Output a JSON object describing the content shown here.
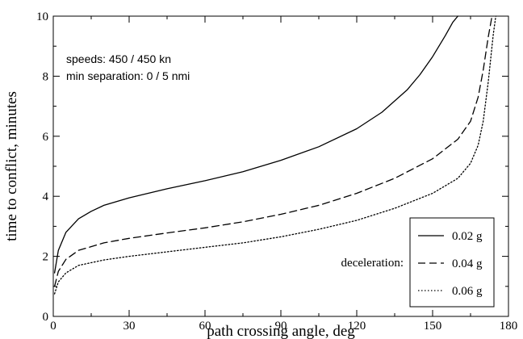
{
  "chart_data": {
    "type": "line",
    "xlabel": "path crossing angle, deg",
    "ylabel": "time to conflict, minutes",
    "xlim": [
      0,
      180
    ],
    "ylim": [
      0,
      10
    ],
    "xticks": [
      0,
      30,
      60,
      90,
      120,
      150,
      180
    ],
    "yticks": [
      0,
      2,
      4,
      6,
      8,
      10
    ],
    "grid": false,
    "legend_title": "deceleration:",
    "legend_position": "bottom-right",
    "annotations": [
      "speeds:  450 /  450 kn",
      "min separation: 0 / 5 nmi"
    ],
    "series": [
      {
        "name": "0.02 g",
        "style": "solid",
        "x": [
          0.5,
          2,
          5,
          10,
          15,
          20,
          30,
          45,
          60,
          75,
          90,
          105,
          120,
          130,
          140,
          145,
          150,
          155,
          158,
          160
        ],
        "y": [
          1.45,
          2.2,
          2.8,
          3.25,
          3.5,
          3.7,
          3.95,
          4.25,
          4.52,
          4.82,
          5.2,
          5.65,
          6.25,
          6.8,
          7.55,
          8.05,
          8.65,
          9.35,
          9.8,
          10.0
        ]
      },
      {
        "name": "0.04 g",
        "style": "dashed",
        "x": [
          0.5,
          2,
          5,
          10,
          20,
          30,
          45,
          60,
          75,
          90,
          105,
          120,
          135,
          150,
          160,
          165,
          168,
          170,
          172,
          173.5
        ],
        "y": [
          1.0,
          1.5,
          1.9,
          2.2,
          2.45,
          2.6,
          2.78,
          2.95,
          3.15,
          3.4,
          3.7,
          4.1,
          4.6,
          5.25,
          5.9,
          6.5,
          7.3,
          8.2,
          9.3,
          10.0
        ]
      },
      {
        "name": "0.06 g",
        "style": "dotted",
        "x": [
          0.5,
          2,
          5,
          10,
          20,
          30,
          45,
          60,
          75,
          90,
          105,
          120,
          135,
          150,
          160,
          165,
          168,
          170,
          172,
          174,
          175
        ],
        "y": [
          0.75,
          1.15,
          1.45,
          1.7,
          1.88,
          2.0,
          2.15,
          2.3,
          2.45,
          2.65,
          2.9,
          3.2,
          3.6,
          4.1,
          4.6,
          5.1,
          5.7,
          6.5,
          7.8,
          9.4,
          10.0
        ]
      }
    ]
  }
}
